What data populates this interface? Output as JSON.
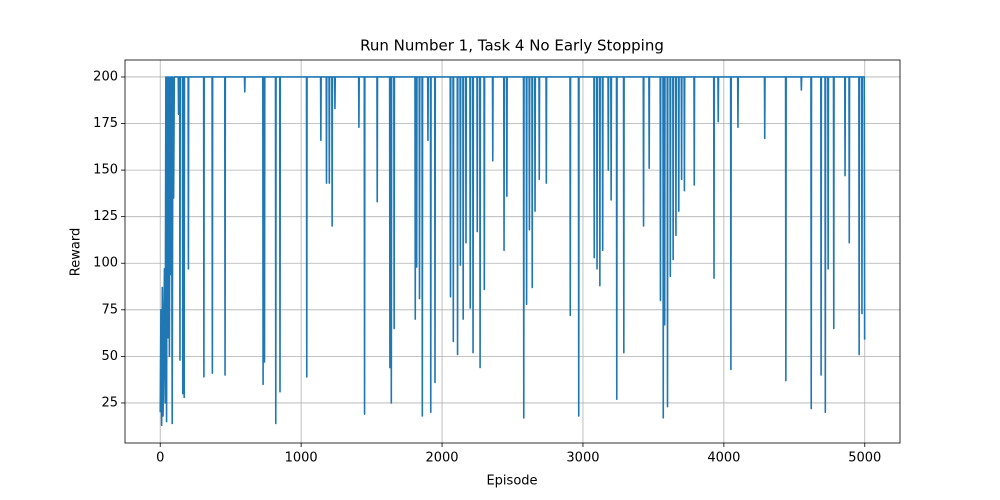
{
  "chart_data": {
    "type": "line",
    "title": "Run Number 1, Task 4 No Early Stopping",
    "x_label": "Episode",
    "y_label": "Reward",
    "xlim": [
      -250,
      5250
    ],
    "ylim": [
      3.5,
      209.1
    ],
    "xticks": [
      0,
      1000,
      2000,
      3000,
      4000,
      5000
    ],
    "yticks": [
      25,
      50,
      75,
      100,
      125,
      150,
      175,
      200
    ],
    "grid": true,
    "series": [
      {
        "color": "#1f77b4",
        "x": [
          0,
          5,
          10,
          15,
          20,
          25,
          30,
          35,
          40,
          45,
          50,
          55,
          60,
          65,
          70,
          75,
          80,
          85,
          90,
          95,
          100,
          105,
          128,
          130,
          132,
          138,
          140,
          142,
          158,
          160,
          162,
          168,
          170,
          172,
          198,
          200,
          202,
          308,
          310,
          312,
          368,
          370,
          372,
          458,
          460,
          462,
          598,
          600,
          602,
          728,
          730,
          732,
          738,
          740,
          742,
          818,
          820,
          822,
          848,
          850,
          852,
          1038,
          1040,
          1042,
          1138,
          1140,
          1142,
          1178,
          1180,
          1182,
          1198,
          1200,
          1202,
          1218,
          1220,
          1222,
          1238,
          1240,
          1242,
          1408,
          1410,
          1412,
          1448,
          1450,
          1452,
          1538,
          1540,
          1542,
          1628,
          1630,
          1632,
          1638,
          1640,
          1642,
          1658,
          1660,
          1662,
          1808,
          1810,
          1812,
          1818,
          1820,
          1822,
          1838,
          1840,
          1842,
          1858,
          1860,
          1862,
          1898,
          1900,
          1902,
          1918,
          1920,
          1922,
          1948,
          1950,
          1952,
          2058,
          2060,
          2062,
          2078,
          2080,
          2082,
          2108,
          2110,
          2112,
          2128,
          2130,
          2132,
          2148,
          2150,
          2152,
          2168,
          2170,
          2172,
          2198,
          2200,
          2202,
          2218,
          2220,
          2222,
          2248,
          2250,
          2252,
          2268,
          2270,
          2272,
          2298,
          2300,
          2302,
          2358,
          2360,
          2362,
          2438,
          2440,
          2442,
          2458,
          2460,
          2462,
          2578,
          2580,
          2582,
          2598,
          2600,
          2602,
          2618,
          2620,
          2622,
          2638,
          2640,
          2642,
          2658,
          2660,
          2662,
          2688,
          2690,
          2692,
          2738,
          2740,
          2742,
          2908,
          2910,
          2912,
          2968,
          2970,
          2972,
          3078,
          3080,
          3082,
          3098,
          3100,
          3102,
          3118,
          3120,
          3122,
          3138,
          3140,
          3142,
          3178,
          3180,
          3182,
          3198,
          3200,
          3202,
          3238,
          3240,
          3242,
          3288,
          3290,
          3292,
          3428,
          3430,
          3432,
          3468,
          3470,
          3472,
          3548,
          3550,
          3552,
          3568,
          3570,
          3572,
          3578,
          3580,
          3582,
          3598,
          3600,
          3602,
          3618,
          3620,
          3622,
          3638,
          3640,
          3642,
          3658,
          3660,
          3662,
          3678,
          3680,
          3682,
          3698,
          3700,
          3702,
          3718,
          3720,
          3722,
          3788,
          3790,
          3792,
          3928,
          3930,
          3932,
          3958,
          3960,
          3962,
          4048,
          4050,
          4052,
          4098,
          4100,
          4102,
          4288,
          4290,
          4292,
          4438,
          4440,
          4442,
          4548,
          4550,
          4552,
          4618,
          4620,
          4622,
          4688,
          4690,
          4692,
          4718,
          4720,
          4722,
          4738,
          4740,
          4742,
          4778,
          4780,
          4782,
          4858,
          4860,
          4862,
          4888,
          4890,
          4892,
          4958,
          4960,
          4962,
          4978,
          4980,
          4982,
          4996,
          4999
        ],
        "values": [
          20,
          75,
          13,
          87,
          18,
          60,
          97,
          25,
          200,
          15,
          200,
          60,
          200,
          50,
          200,
          94,
          200,
          14,
          200,
          135,
          200,
          200,
          200,
          180,
          200,
          200,
          48,
          200,
          200,
          30,
          200,
          200,
          28,
          200,
          200,
          97,
          200,
          200,
          39,
          200,
          200,
          41,
          200,
          200,
          40,
          200,
          200,
          192,
          200,
          200,
          35,
          200,
          200,
          47,
          200,
          200,
          14,
          200,
          200,
          31,
          200,
          200,
          39,
          200,
          200,
          166,
          200,
          200,
          143,
          200,
          200,
          143,
          200,
          200,
          120,
          200,
          200,
          183,
          200,
          200,
          173,
          200,
          200,
          19,
          200,
          200,
          133,
          200,
          200,
          44,
          200,
          200,
          25,
          200,
          200,
          65,
          200,
          200,
          70,
          200,
          200,
          98,
          200,
          200,
          81,
          200,
          200,
          18,
          200,
          200,
          166,
          200,
          200,
          20,
          200,
          200,
          36,
          200,
          200,
          82,
          200,
          200,
          58,
          200,
          200,
          51,
          200,
          200,
          99,
          200,
          200,
          70,
          200,
          200,
          111,
          200,
          200,
          76,
          200,
          200,
          52,
          200,
          200,
          117,
          200,
          200,
          44,
          200,
          200,
          86,
          200,
          200,
          155,
          200,
          200,
          107,
          200,
          200,
          136,
          200,
          200,
          17,
          200,
          200,
          78,
          200,
          200,
          118,
          200,
          200,
          87,
          200,
          200,
          128,
          200,
          200,
          145,
          200,
          200,
          143,
          200,
          200,
          72,
          200,
          200,
          18,
          200,
          200,
          103,
          200,
          200,
          97,
          200,
          200,
          88,
          200,
          200,
          107,
          200,
          200,
          150,
          200,
          200,
          134,
          200,
          200,
          27,
          200,
          200,
          52,
          200,
          200,
          120,
          200,
          200,
          151,
          200,
          200,
          80,
          200,
          200,
          17,
          200,
          200,
          67,
          200,
          200,
          23,
          200,
          200,
          93,
          200,
          200,
          102,
          200,
          200,
          115,
          200,
          200,
          128,
          200,
          200,
          145,
          200,
          200,
          139,
          200,
          200,
          142,
          200,
          200,
          92,
          200,
          200,
          176,
          200,
          200,
          43,
          200,
          200,
          173,
          200,
          200,
          167,
          200,
          200,
          37,
          200,
          200,
          193,
          200,
          200,
          22,
          200,
          200,
          40,
          200,
          200,
          20,
          200,
          200,
          97,
          200,
          200,
          65,
          200,
          200,
          147,
          200,
          200,
          111,
          200,
          200,
          51,
          200,
          200,
          73,
          200,
          200,
          59
        ]
      }
    ]
  }
}
